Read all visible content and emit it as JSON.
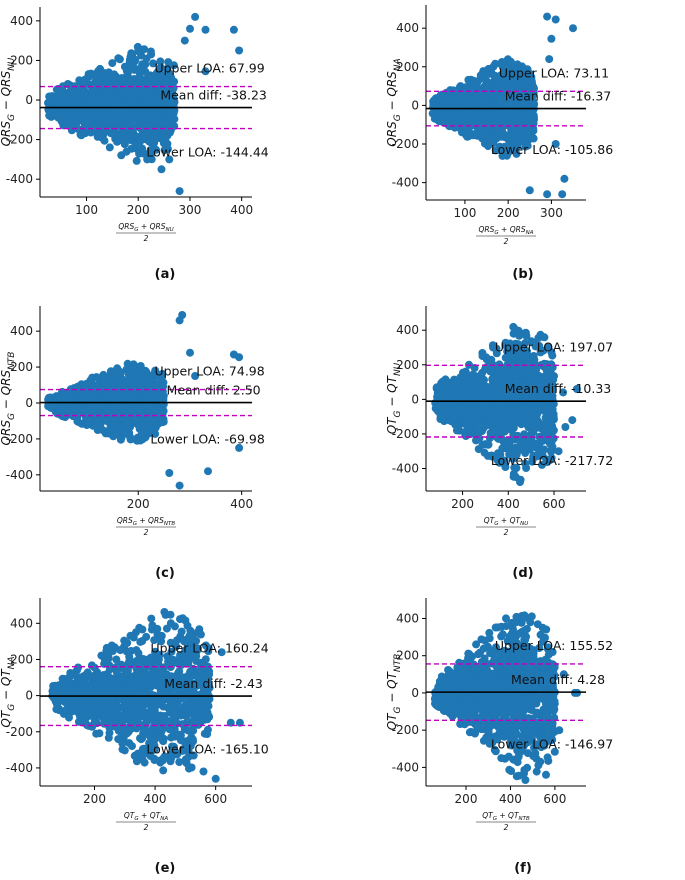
{
  "colors": {
    "points": "#1f77b4",
    "mean_line": "#000000",
    "loa_line": "#c000c0"
  },
  "chart_data": [
    {
      "id": "a",
      "panel_label": "(a)",
      "type": "scatter",
      "ylabel_main": "QRS",
      "ylabel_sub1": "G",
      "ylabel_mid": " − QRS",
      "ylabel_sub2": "NU",
      "xlabel_num_main": "QRS",
      "xlabel_num_sub1": "G",
      "xlabel_num_mid": " + QRS",
      "xlabel_num_sub2": "NU",
      "xlabel_den": "2",
      "xlim": [
        10,
        420
      ],
      "ylim": [
        -490,
        470
      ],
      "xticks": [
        100,
        200,
        300,
        400
      ],
      "yticks": [
        -400,
        -200,
        0,
        200,
        400
      ],
      "upper_loa": 67.99,
      "mean_diff": -38.23,
      "lower_loa": -144.44,
      "upper_text": "Upper LOA: 67.99",
      "mean_text": "Mean diff: -38.23",
      "lower_text": "Lower LOA: -144.44",
      "cloud": {
        "x0": 25,
        "x1": 270,
        "ybase": -30,
        "spread_lo": 60,
        "spread_hi": 300,
        "tail_frac": 0.5
      },
      "outliers": [
        [
          310,
          420
        ],
        [
          330,
          355
        ],
        [
          385,
          355
        ],
        [
          395,
          250
        ],
        [
          300,
          360
        ],
        [
          280,
          -460
        ],
        [
          330,
          145
        ],
        [
          260,
          -300
        ],
        [
          245,
          -350
        ],
        [
          290,
          300
        ]
      ]
    },
    {
      "id": "b",
      "panel_label": "(b)",
      "type": "scatter",
      "ylabel_main": "QRS",
      "ylabel_sub1": "G",
      "ylabel_mid": " − QRS",
      "ylabel_sub2": "NA",
      "xlabel_num_main": "QRS",
      "xlabel_num_sub1": "G",
      "xlabel_num_mid": " + QRS",
      "xlabel_num_sub2": "NA",
      "xlabel_den": "2",
      "xlim": [
        10,
        380
      ],
      "ylim": [
        -490,
        520
      ],
      "xticks": [
        100,
        200,
        300
      ],
      "yticks": [
        -400,
        -200,
        0,
        200,
        400
      ],
      "upper_loa": 73.11,
      "mean_diff": -16.37,
      "lower_loa": -105.86,
      "upper_text": "Upper LOA: 73.11",
      "mean_text": "Mean diff: -16.37",
      "lower_text": "Lower LOA: -105.86",
      "cloud": {
        "x0": 25,
        "x1": 260,
        "ybase": -15,
        "spread_lo": 50,
        "spread_hi": 260,
        "tail_frac": 0.5
      },
      "outliers": [
        [
          290,
          460
        ],
        [
          310,
          445
        ],
        [
          350,
          400
        ],
        [
          300,
          345
        ],
        [
          290,
          -460
        ],
        [
          325,
          -460
        ],
        [
          330,
          -380
        ],
        [
          295,
          240
        ],
        [
          310,
          -200
        ],
        [
          250,
          -440
        ]
      ]
    },
    {
      "id": "c",
      "panel_label": "(c)",
      "type": "scatter",
      "ylabel_main": "QRS",
      "ylabel_sub1": "G",
      "ylabel_mid": " − QRS",
      "ylabel_sub2": "NTB",
      "xlabel_num_main": "QRS",
      "xlabel_num_sub1": "G",
      "xlabel_num_mid": " + QRS",
      "xlabel_num_sub2": "NTB",
      "xlabel_den": "2",
      "xlim": [
        10,
        420
      ],
      "ylim": [
        -490,
        540
      ],
      "xticks": [
        200,
        400
      ],
      "yticks": [
        -400,
        -200,
        0,
        200,
        400
      ],
      "upper_loa": 74.98,
      "mean_diff": 2.5,
      "lower_loa": -69.98,
      "upper_text": "Upper LOA: 74.98",
      "mean_text": "Mean diff: 2.50",
      "lower_text": "Lower LOA: -69.98",
      "cloud": {
        "x0": 25,
        "x1": 250,
        "ybase": 0,
        "spread_lo": 40,
        "spread_hi": 230,
        "tail_frac": 0.5
      },
      "outliers": [
        [
          285,
          490
        ],
        [
          280,
          460
        ],
        [
          300,
          280
        ],
        [
          385,
          270
        ],
        [
          395,
          255
        ],
        [
          335,
          -380
        ],
        [
          395,
          -250
        ],
        [
          260,
          -390
        ],
        [
          280,
          -460
        ],
        [
          310,
          150
        ]
      ]
    },
    {
      "id": "d",
      "panel_label": "(d)",
      "type": "scatter",
      "ylabel_main": "QT",
      "ylabel_sub1": "G",
      "ylabel_mid": " − QT",
      "ylabel_sub2": "NU",
      "xlabel_num_main": "QT",
      "xlabel_num_sub1": "G",
      "xlabel_num_mid": " + QT",
      "xlabel_num_sub2": "NU",
      "xlabel_den": "2",
      "xlim": [
        40,
        740
      ],
      "ylim": [
        -530,
        540
      ],
      "xticks": [
        200,
        400,
        600
      ],
      "yticks": [
        -400,
        -200,
        0,
        200,
        400
      ],
      "upper_loa": 197.07,
      "mean_diff": -10.33,
      "lower_loa": -217.72,
      "upper_text": "Upper LOA: 197.07",
      "mean_text": "Mean diff: -10.33",
      "lower_text": "Lower LOA: -217.72",
      "cloud": {
        "x0": 80,
        "x1": 600,
        "ybase": -10,
        "spread_lo": 80,
        "spread_hi": 470,
        "tail_frac": 0.45
      },
      "outliers": [
        [
          700,
          60
        ],
        [
          680,
          -120
        ],
        [
          640,
          40
        ],
        [
          620,
          -300
        ],
        [
          650,
          -160
        ]
      ]
    },
    {
      "id": "e",
      "panel_label": "(e)",
      "type": "scatter",
      "ylabel_main": "QT",
      "ylabel_sub1": "G",
      "ylabel_mid": " − QT",
      "ylabel_sub2": "NA",
      "xlabel_num_main": "QT",
      "xlabel_num_sub1": "G",
      "xlabel_num_mid": " + QT",
      "xlabel_num_sub2": "NA",
      "xlabel_den": "2",
      "xlim": [
        20,
        720
      ],
      "ylim": [
        -500,
        540
      ],
      "xticks": [
        200,
        400,
        600
      ],
      "yticks": [
        -400,
        -200,
        0,
        200,
        400
      ],
      "upper_loa": 160.24,
      "mean_diff": -2.43,
      "lower_loa": -165.1,
      "upper_text": "Upper LOA: 160.24",
      "mean_text": "Mean diff: -2.43",
      "lower_text": "Lower LOA: -165.10",
      "cloud": {
        "x0": 60,
        "x1": 580,
        "ybase": 0,
        "spread_lo": 60,
        "spread_hi": 480,
        "tail_frac": 0.45
      },
      "outliers": [
        [
          620,
          240
        ],
        [
          650,
          -150
        ],
        [
          600,
          -460
        ],
        [
          680,
          -150
        ],
        [
          560,
          -420
        ]
      ]
    },
    {
      "id": "f",
      "panel_label": "(f)",
      "type": "scatter",
      "ylabel_main": "QT",
      "ylabel_sub1": "G",
      "ylabel_mid": " − QT",
      "ylabel_sub2": "NTB",
      "xlabel_num_main": "QT",
      "xlabel_num_sub1": "G",
      "xlabel_num_mid": " + QT",
      "xlabel_num_sub2": "NTB",
      "xlabel_den": "2",
      "xlim": [
        20,
        740
      ],
      "ylim": [
        -500,
        510
      ],
      "xticks": [
        200,
        400,
        600
      ],
      "yticks": [
        -400,
        -200,
        0,
        200,
        400
      ],
      "upper_loa": 155.52,
      "mean_diff": 4.28,
      "lower_loa": -146.97,
      "upper_text": "Upper LOA: 155.52",
      "mean_text": "Mean diff: 4.28",
      "lower_text": "Lower LOA: -146.97",
      "cloud": {
        "x0": 60,
        "x1": 600,
        "ybase": 0,
        "spread_lo": 60,
        "spread_hi": 480,
        "tail_frac": 0.45
      },
      "outliers": [
        [
          700,
          0
        ],
        [
          690,
          0
        ],
        [
          640,
          100
        ],
        [
          620,
          -200
        ],
        [
          560,
          -440
        ]
      ]
    }
  ]
}
